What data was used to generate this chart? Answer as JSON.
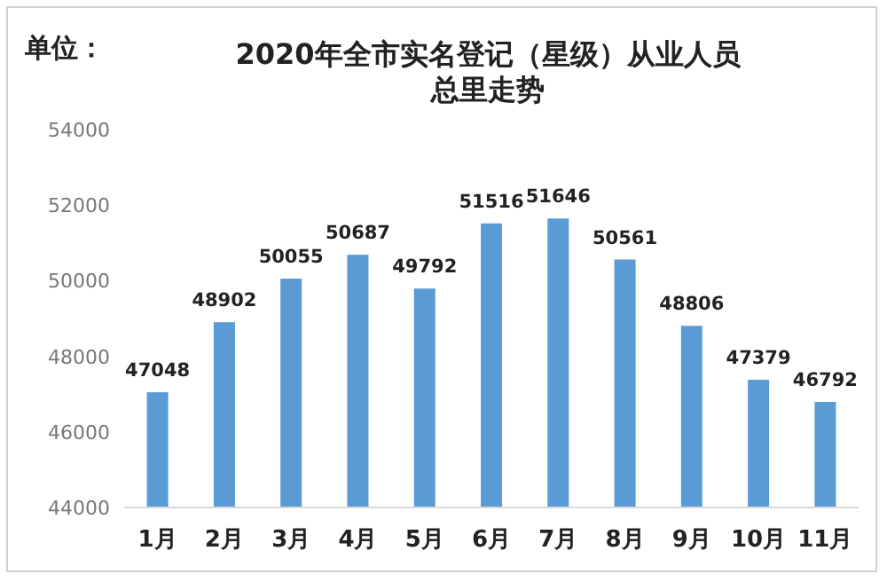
{
  "chart_data": {
    "type": "bar",
    "title": "2020年全市实名登记（星级）从业人员总里走势",
    "ylabel": "单位：",
    "categories": [
      "1月",
      "2月",
      "3月",
      "4月",
      "5月",
      "6月",
      "7月",
      "8月",
      "9月",
      "10月",
      "11月"
    ],
    "values": [
      47048,
      48902,
      50055,
      50687,
      49792,
      51516,
      51646,
      50561,
      48806,
      47379,
      46792
    ],
    "color": "#5b9bd5",
    "ylim": [
      44000,
      54000
    ],
    "yticks": [
      44000,
      46000,
      48000,
      50000,
      52000,
      54000
    ],
    "data_labels": true,
    "grid": false
  }
}
